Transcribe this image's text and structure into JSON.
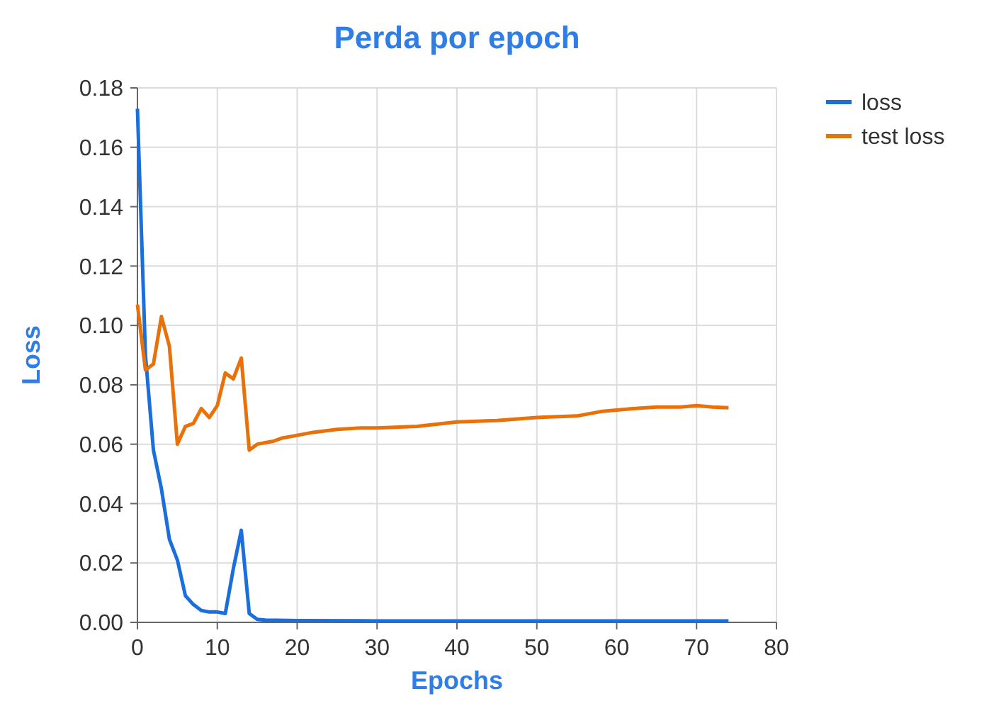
{
  "chart_data": {
    "type": "line",
    "title": "Perda por epoch",
    "xlabel": "Epochs",
    "ylabel": "Loss",
    "xlim": [
      0,
      80
    ],
    "xticks": [
      0,
      10,
      20,
      30,
      40,
      50,
      60,
      70,
      80
    ],
    "ylim": [
      0,
      0.18
    ],
    "yticks": [
      {
        "value": 0,
        "label": "0.00"
      },
      0.02,
      0.04,
      0.06,
      0.08,
      {
        "value": 0.1,
        "label": "0.10"
      },
      0.12,
      0.14,
      0.16,
      0.18
    ],
    "grid": true,
    "legend": "top right",
    "marker": "none",
    "line_style": "solid",
    "series": [
      {
        "name": "loss",
        "color": "#1a6fdc",
        "x": [
          0,
          1,
          2,
          3,
          4,
          5,
          6,
          7,
          8,
          9,
          10,
          11,
          12,
          13,
          14,
          15,
          16,
          20,
          30,
          40,
          50,
          60,
          70,
          74
        ],
        "values": [
          0.173,
          0.09,
          0.058,
          0.045,
          0.028,
          0.021,
          0.009,
          0.006,
          0.004,
          0.0035,
          0.0035,
          0.003,
          0.018,
          0.031,
          0.003,
          0.001,
          0.0008,
          0.0006,
          0.0005,
          0.0005,
          0.0005,
          0.0005,
          0.0005,
          0.0005
        ]
      },
      {
        "name": "test loss",
        "color": "#e8710a",
        "x": [
          0,
          1,
          2,
          3,
          4,
          5,
          6,
          7,
          8,
          9,
          10,
          11,
          12,
          13,
          14,
          15,
          16,
          17,
          18,
          20,
          22,
          25,
          28,
          30,
          35,
          40,
          45,
          50,
          55,
          58,
          60,
          62,
          65,
          68,
          70,
          72,
          74
        ],
        "values": [
          0.107,
          0.085,
          0.087,
          0.103,
          0.093,
          0.06,
          0.066,
          0.067,
          0.072,
          0.069,
          0.073,
          0.084,
          0.082,
          0.089,
          0.058,
          0.06,
          0.0605,
          0.061,
          0.062,
          0.063,
          0.064,
          0.065,
          0.0655,
          0.0655,
          0.066,
          0.0675,
          0.068,
          0.069,
          0.0695,
          0.071,
          0.0715,
          0.072,
          0.0725,
          0.0725,
          0.073,
          0.0725,
          0.0723
        ]
      }
    ]
  }
}
